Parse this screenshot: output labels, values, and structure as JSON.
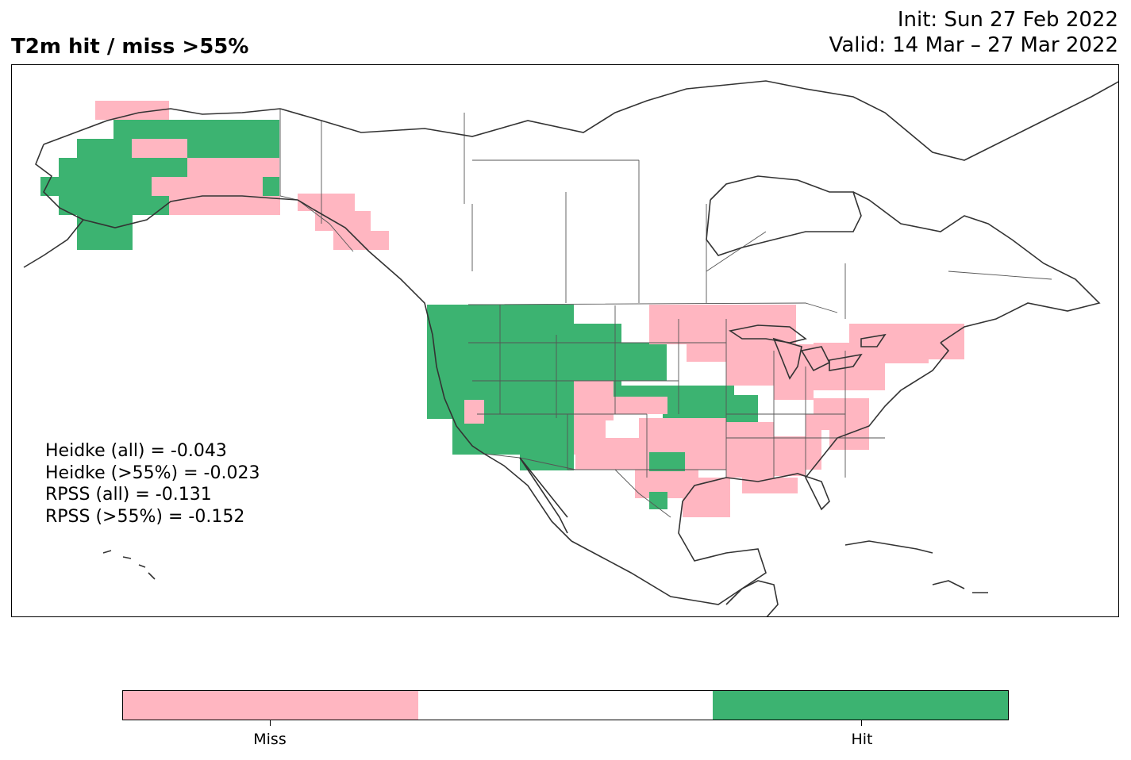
{
  "header": {
    "title": "T2m hit / miss  >55%",
    "init": "Init: Sun 27 Feb 2022",
    "valid": "Valid: 14 Mar – 27 Mar 2022"
  },
  "scores": [
    "Heidke (all) = -0.043",
    "Heidke (>55%) = -0.023",
    "RPSS (all) = -0.131",
    "RPSS (>55%) = -0.152"
  ],
  "legend": {
    "categories": [
      {
        "label": "Miss",
        "color": "#ffb6c1"
      },
      {
        "label": "",
        "color": "#ffffff"
      },
      {
        "label": "Hit",
        "color": "#3cb371"
      }
    ],
    "tick_labels": [
      "Miss",
      "Hit"
    ]
  },
  "colors": {
    "miss": "#ffb6c1",
    "neutral": "#ffffff",
    "hit": "#3cb371",
    "coastline": "#333333",
    "border": "#555555"
  }
}
